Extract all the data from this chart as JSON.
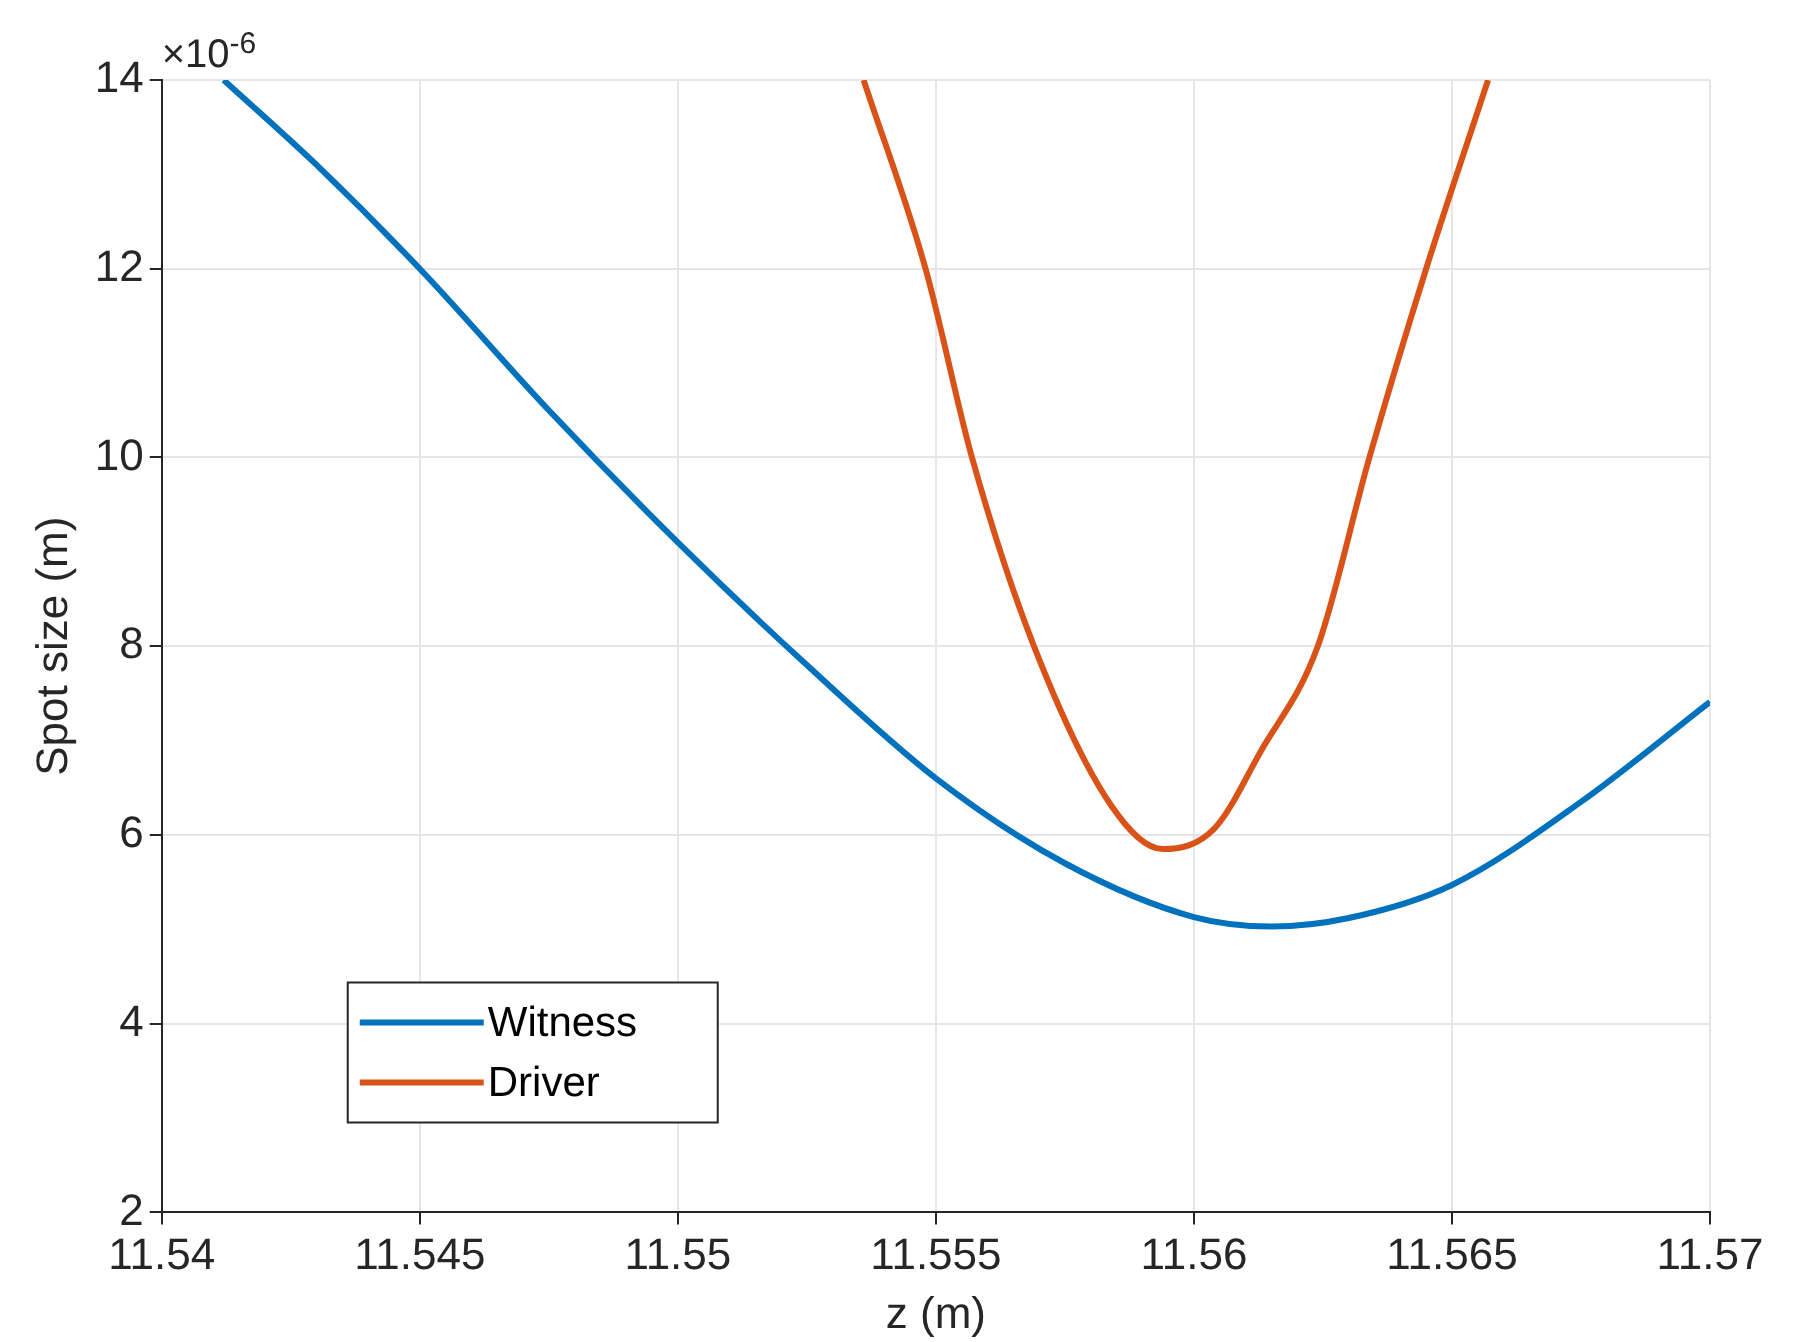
{
  "chart_data": {
    "type": "line",
    "xlabel": "z (m)",
    "ylabel": "Spot size (m)",
    "annotations": [
      "×10$^{-6}$"
    ],
    "xlim": [
      11.54,
      11.57
    ],
    "xticks": [
      11.54,
      11.545,
      11.55,
      11.555,
      11.56,
      11.565,
      11.57
    ],
    "ylim": [
      2,
      14
    ],
    "yticks": [
      2,
      4,
      6,
      8,
      10,
      12,
      14
    ],
    "grid": true,
    "legend": "bottom left",
    "marker": "none",
    "line_style": "solid",
    "series": [
      {
        "name": "Witness",
        "color": "#0072bd",
        "x": [
          11.5412,
          11.543,
          11.545,
          11.5475,
          11.55,
          11.5525,
          11.555,
          11.5575,
          11.56,
          11.5615,
          11.563,
          11.565,
          11.5675,
          11.57
        ],
        "values": [
          14,
          13.1,
          12,
          10.5,
          9.1,
          7.8,
          6.6,
          5.7,
          5.13,
          5.03,
          5.12,
          5.47,
          6.35,
          7.41
        ]
      },
      {
        "name": "Driver",
        "color": "#d95319",
        "x": [
          11.5536,
          11.5548,
          11.5557,
          11.5569,
          11.5584,
          11.5594,
          11.5604,
          11.5613,
          11.5624,
          11.5634,
          11.5645,
          11.5657
        ],
        "values": [
          14,
          12,
          10,
          8,
          6.31,
          5.85,
          6.07,
          6.89,
          8,
          10,
          12,
          14
        ]
      }
    ]
  }
}
